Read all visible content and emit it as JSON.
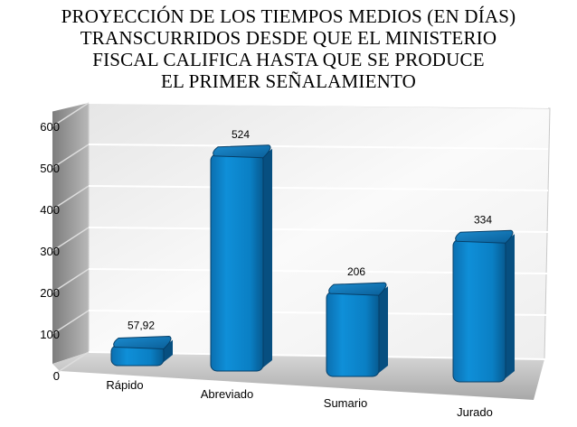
{
  "chart_data": {
    "type": "bar",
    "title_lines": [
      "PROYECCIÓN DE LOS TIEMPOS MEDIOS (EN DÍAS)",
      "TRANSCURRIDOS DESDE QUE EL MINISTERIO",
      "FISCAL CALIFICA HASTA QUE SE PRODUCE",
      "EL PRIMER SEÑALAMIENTO"
    ],
    "categories": [
      "Rápido",
      "Abreviado",
      "Sumario",
      "Jurado"
    ],
    "values": [
      57.92,
      524,
      206,
      334
    ],
    "value_labels": [
      "57,92",
      "524",
      "206",
      "334"
    ],
    "y_ticks": [
      "0",
      "100",
      "200",
      "300",
      "400",
      "500",
      "600"
    ],
    "ylim": [
      0,
      600
    ],
    "grid": true,
    "legend": "none",
    "colors": {
      "bar": "#0a7fc4",
      "bar_top": "#0b5f9c",
      "bar_edge": "#053f6b",
      "wall": "#f4f4f4",
      "side_wall": "#9a9a9a",
      "floor": "#bfbfbf",
      "grid": "#ffffff"
    }
  }
}
